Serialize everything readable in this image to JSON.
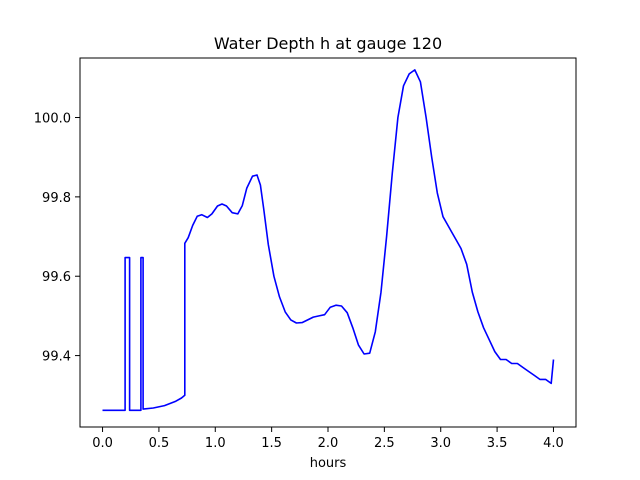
{
  "chart_data": {
    "type": "line",
    "title": "Water Depth h at gauge 120",
    "xlabel": "hours",
    "ylabel": "",
    "xlim": [
      -0.2,
      4.2
    ],
    "ylim": [
      99.22,
      100.15
    ],
    "xticks": [
      0.0,
      0.5,
      1.0,
      1.5,
      2.0,
      2.5,
      3.0,
      3.5,
      4.0
    ],
    "xtick_labels": [
      "0.0",
      "0.5",
      "1.0",
      "1.5",
      "2.0",
      "2.5",
      "3.0",
      "3.5",
      "4.0"
    ],
    "yticks": [
      99.4,
      99.6,
      99.8,
      100.0
    ],
    "ytick_labels": [
      "99.4",
      "99.6",
      "99.8",
      "100.0"
    ],
    "grid": false,
    "series": [
      {
        "color": "#0000ff",
        "x": [
          0.0,
          0.2,
          0.2,
          0.24,
          0.24,
          0.34,
          0.34,
          0.36,
          0.36,
          0.45,
          0.55,
          0.65,
          0.7,
          0.73,
          0.73,
          0.76,
          0.8,
          0.84,
          0.88,
          0.93,
          0.97,
          1.02,
          1.06,
          1.1,
          1.15,
          1.2,
          1.24,
          1.28,
          1.33,
          1.37,
          1.4,
          1.43,
          1.47,
          1.52,
          1.57,
          1.62,
          1.67,
          1.72,
          1.77,
          1.82,
          1.87,
          1.92,
          1.97,
          2.02,
          2.07,
          2.12,
          2.17,
          2.22,
          2.27,
          2.32,
          2.37,
          2.42,
          2.47,
          2.52,
          2.57,
          2.62,
          2.67,
          2.72,
          2.77,
          2.82,
          2.87,
          2.92,
          2.97,
          3.02,
          3.06,
          3.1,
          3.14,
          3.18,
          3.23,
          3.28,
          3.33,
          3.38,
          3.43,
          3.48,
          3.53,
          3.58,
          3.63,
          3.68,
          3.73,
          3.78,
          3.83,
          3.88,
          3.93,
          3.98,
          4.0
        ],
        "y": [
          99.262,
          99.262,
          99.647,
          99.647,
          99.262,
          99.262,
          99.647,
          99.647,
          99.265,
          99.268,
          99.274,
          99.285,
          99.293,
          99.3,
          99.683,
          99.697,
          99.728,
          99.751,
          99.755,
          99.748,
          99.757,
          99.777,
          99.782,
          99.777,
          99.76,
          99.757,
          99.778,
          99.822,
          99.852,
          99.855,
          99.83,
          99.77,
          99.68,
          99.6,
          99.548,
          99.51,
          99.49,
          99.482,
          99.483,
          99.49,
          99.497,
          99.5,
          99.503,
          99.522,
          99.527,
          99.525,
          99.508,
          99.47,
          99.427,
          99.404,
          99.406,
          99.46,
          99.56,
          99.7,
          99.86,
          100.0,
          100.08,
          100.11,
          100.12,
          100.09,
          100.0,
          99.9,
          99.81,
          99.75,
          99.73,
          99.71,
          99.69,
          99.67,
          99.63,
          99.56,
          99.51,
          99.47,
          99.44,
          99.41,
          99.39,
          99.39,
          99.38,
          99.38,
          99.37,
          99.36,
          99.35,
          99.34,
          99.34,
          99.33,
          99.39
        ]
      }
    ]
  }
}
